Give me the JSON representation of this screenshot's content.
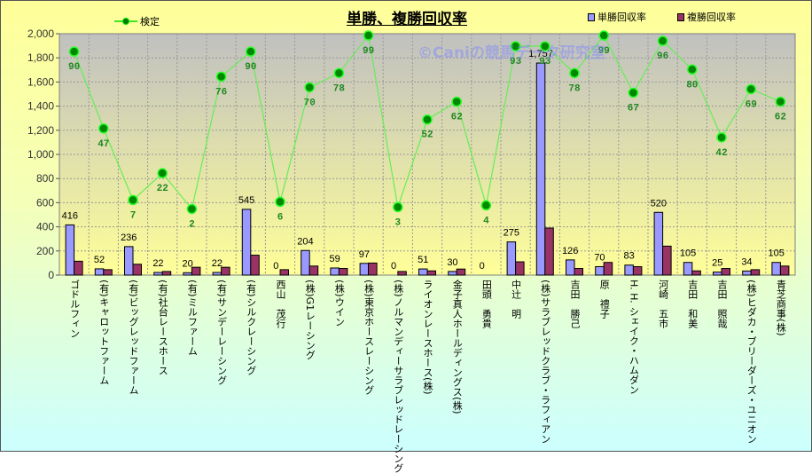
{
  "chart_data": {
    "type": "bar",
    "title": "単勝、複勝回収率",
    "watermark": "©Caniの競馬データ研究室",
    "categories": [
      "ゴドルフィン",
      "(有)キャロットファーム",
      "(有)ビッグレッドファーム",
      "(有)社台レースホース",
      "(有)ミルファーム",
      "(有)サンデーレーシング",
      "(有)シルクレーシング",
      "西山　茂行",
      "(株)G1レーシング",
      "(株)ウイン",
      "(株)東京ホースレーシング",
      "(株)ノルマンディーサラブレッドレーシング",
      "ライオンレースホース(株)",
      "金子真人ホールディングス(株)",
      "田頭　勇貴",
      "中辻　明",
      "(株)サラブレッドクラブ・ラフィアン",
      "吉田　勝己",
      "原　禮子",
      "H. H. シェイク・ハムダン",
      "河崎　五市",
      "吉田　和美",
      "吉田　照哉",
      "(株)ヒダカ・ブリーダーズ・ユニオン",
      "青芝商事(株)"
    ],
    "y_ticks": [
      "0",
      "200",
      "400",
      "600",
      "800",
      "1,000",
      "1,200",
      "1,400",
      "1,600",
      "1,800",
      "2,000"
    ],
    "ylim": [
      0,
      2000
    ],
    "y2lim": [
      -35,
      100
    ],
    "grid": true,
    "legend_placement": "top",
    "series": [
      {
        "name": "単勝回収率",
        "type": "bar",
        "color": "#9999FF",
        "values": [
          416,
          52,
          236,
          22,
          20,
          22,
          545,
          0,
          204,
          59,
          97,
          0,
          51,
          30,
          0,
          275,
          1757,
          126,
          70,
          83,
          520,
          105,
          25,
          34,
          105
        ],
        "labels": [
          "416",
          "52",
          "236",
          "22",
          "20",
          "22",
          "545",
          "0",
          "204",
          "59",
          "97",
          "0",
          "51",
          "30",
          "0",
          "275",
          "1,757",
          "126",
          "70",
          "83",
          "520",
          "105",
          "25",
          "34",
          "105"
        ]
      },
      {
        "name": "複勝回収率",
        "type": "bar",
        "color": "#993366",
        "values": [
          115,
          45,
          90,
          30,
          65,
          65,
          165,
          45,
          75,
          55,
          100,
          30,
          35,
          50,
          0,
          110,
          390,
          55,
          105,
          70,
          240,
          35,
          55,
          45,
          75
        ]
      },
      {
        "name": "検定",
        "type": "line",
        "axis": "secondary",
        "color": "#00AA00",
        "values": [
          90,
          47,
          7,
          22,
          2,
          76,
          90,
          6,
          70,
          78,
          99,
          3,
          52,
          62,
          4,
          93,
          93,
          78,
          99,
          67,
          96,
          80,
          42,
          69,
          62
        ]
      }
    ]
  }
}
